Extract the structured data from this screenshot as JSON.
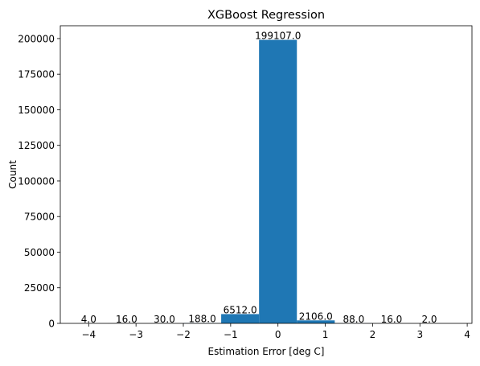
{
  "chart_data": {
    "type": "bar",
    "title": "XGBoost Regression",
    "xlabel": "Estimation Error [deg C]",
    "ylabel": "Count",
    "xlim": [
      -4.6,
      4.1
    ],
    "ylim": [
      0,
      209000
    ],
    "xticks": [
      -4,
      -3,
      -2,
      -1,
      0,
      1,
      2,
      3,
      4
    ],
    "xtick_labels": [
      "−4",
      "−3",
      "−2",
      "−1",
      "0",
      "1",
      "2",
      "3",
      "4"
    ],
    "yticks": [
      0,
      25000,
      50000,
      75000,
      100000,
      125000,
      150000,
      175000,
      200000
    ],
    "ytick_labels": [
      "0",
      "25000",
      "50000",
      "75000",
      "100000",
      "125000",
      "150000",
      "175000",
      "200000"
    ],
    "bin_width": 0.8,
    "bins": [
      {
        "x_start": -4.4,
        "count": 4,
        "label": "4.0"
      },
      {
        "x_start": -3.6,
        "count": 16,
        "label": "16.0"
      },
      {
        "x_start": -2.8,
        "count": 30,
        "label": "30.0"
      },
      {
        "x_start": -2.0,
        "count": 188,
        "label": "188.0"
      },
      {
        "x_start": -1.2,
        "count": 6512,
        "label": "6512.0"
      },
      {
        "x_start": -0.4,
        "count": 199107,
        "label": "199107.0"
      },
      {
        "x_start": 0.4,
        "count": 2106,
        "label": "2106.0"
      },
      {
        "x_start": 1.2,
        "count": 88,
        "label": "88.0"
      },
      {
        "x_start": 2.0,
        "count": 16,
        "label": "16.0"
      },
      {
        "x_start": 2.8,
        "count": 2,
        "label": "2.0"
      }
    ],
    "bar_color": "#1f77b4",
    "grid": false,
    "legend": "none"
  }
}
